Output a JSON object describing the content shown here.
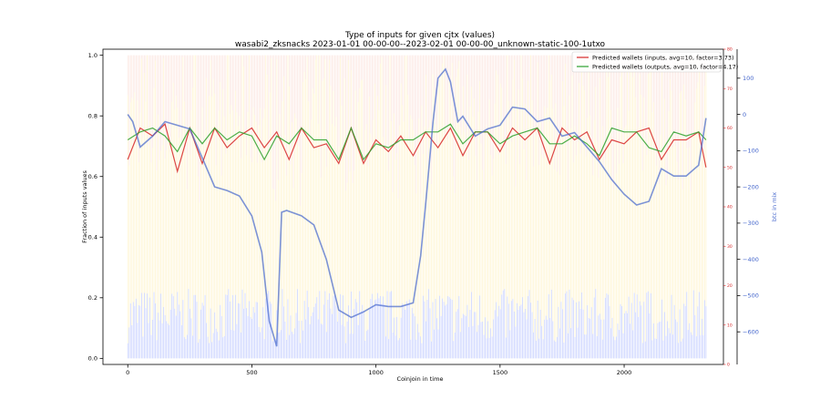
{
  "chart_data": {
    "type": "line",
    "title": "Type of inputs for given cjtx (values)",
    "subtitle": "wasabi2_zksnacks 2023-01-01 00-00-00--2023-02-01 00-00-00_unknown-static-100-1utxo",
    "xlabel": "Coinjoin in time",
    "ylabel": "Fraction of inputs values",
    "y2label": "btc in mix",
    "xlim": [
      -100,
      2400
    ],
    "ylim": [
      -0.02,
      1.02
    ],
    "y_red_lim": [
      0,
      80
    ],
    "y2lim": [
      -690,
      180
    ],
    "x_ticks": [
      0,
      500,
      1000,
      1500,
      2000
    ],
    "x_tick_labels": [
      "0",
      "500",
      "1000",
      "1500",
      "2000"
    ],
    "y_ticks": [
      0.0,
      0.2,
      0.4,
      0.6,
      0.8,
      1.0
    ],
    "y_tick_labels": [
      "0.0",
      "0.2",
      "0.4",
      "0.6",
      "0.8",
      "1.0"
    ],
    "y_red_ticks": [
      0,
      10,
      20,
      30,
      40,
      50,
      60,
      70,
      80
    ],
    "y_red_tick_labels": [
      "0",
      "10",
      "20",
      "30",
      "40",
      "50",
      "60",
      "70",
      "80"
    ],
    "y2_ticks": [
      100,
      0,
      -100,
      -200,
      -300,
      -400,
      -500,
      -600
    ],
    "y2_tick_labels": [
      "100",
      "0",
      "−100",
      "−200",
      "−300",
      "−400",
      "−500",
      "−600"
    ],
    "legend_position": "top-right",
    "grid": false,
    "series": [
      {
        "name": "Predicted wallets (inputs, avg=10, factor=3.73)",
        "color": "#d62728",
        "axis": "red",
        "x": [
          0,
          50,
          100,
          150,
          200,
          250,
          300,
          350,
          400,
          450,
          500,
          550,
          600,
          650,
          700,
          750,
          800,
          850,
          900,
          950,
          1000,
          1050,
          1100,
          1150,
          1200,
          1250,
          1300,
          1350,
          1400,
          1450,
          1500,
          1550,
          1600,
          1650,
          1700,
          1750,
          1800,
          1850,
          1900,
          1950,
          2000,
          2050,
          2100,
          2150,
          2200,
          2250,
          2300,
          2330
        ],
        "y": [
          52,
          60,
          58,
          61,
          49,
          60,
          51,
          60,
          55,
          58,
          60,
          55,
          59,
          52,
          60,
          55,
          56,
          51,
          60,
          51,
          57,
          54,
          58,
          53,
          59,
          55,
          60,
          53,
          59,
          59,
          54,
          60,
          57,
          60,
          51,
          60,
          57,
          59,
          52,
          57,
          56,
          59,
          60,
          52,
          57,
          57,
          59,
          50
        ]
      },
      {
        "name": "Predicted wallets (outputs, avg=10, factor=4.17)",
        "color": "#2ca02c",
        "axis": "red",
        "x": [
          0,
          50,
          100,
          150,
          200,
          250,
          300,
          350,
          400,
          450,
          500,
          550,
          600,
          650,
          700,
          750,
          800,
          850,
          900,
          950,
          1000,
          1050,
          1100,
          1150,
          1200,
          1250,
          1300,
          1350,
          1400,
          1450,
          1500,
          1550,
          1600,
          1650,
          1700,
          1750,
          1800,
          1850,
          1900,
          1950,
          2000,
          2050,
          2100,
          2150,
          2200,
          2250,
          2300,
          2330
        ],
        "y": [
          57,
          59,
          60,
          58,
          54,
          60,
          56,
          60,
          57,
          59,
          58,
          52,
          58,
          56,
          60,
          57,
          57,
          52,
          60,
          52,
          56,
          55,
          57,
          57,
          59,
          59,
          61,
          56,
          59,
          59,
          56,
          58,
          59,
          60,
          56,
          56,
          58,
          56,
          53,
          60,
          59,
          59,
          55,
          54,
          59,
          58,
          59,
          57
        ]
      },
      {
        "name": "btc in mix",
        "color": "#4466cc",
        "axis": "blue",
        "x": [
          0,
          20,
          50,
          100,
          150,
          200,
          250,
          300,
          350,
          400,
          450,
          500,
          540,
          570,
          600,
          620,
          640,
          700,
          750,
          800,
          850,
          900,
          950,
          1000,
          1050,
          1100,
          1150,
          1180,
          1200,
          1230,
          1250,
          1280,
          1300,
          1330,
          1350,
          1400,
          1450,
          1500,
          1550,
          1600,
          1650,
          1700,
          1750,
          1800,
          1850,
          1900,
          1950,
          2000,
          2050,
          2100,
          2150,
          2200,
          2250,
          2300,
          2330
        ],
        "y": [
          0,
          -20,
          -90,
          -60,
          -20,
          -30,
          -40,
          -120,
          -200,
          -210,
          -225,
          -280,
          -380,
          -570,
          -640,
          -270,
          -265,
          -280,
          -305,
          -400,
          -540,
          -560,
          -545,
          -525,
          -530,
          -530,
          -520,
          -390,
          -250,
          -20,
          100,
          125,
          90,
          -20,
          -5,
          -60,
          -40,
          -30,
          20,
          15,
          -20,
          -10,
          -60,
          -50,
          -90,
          -130,
          -180,
          -220,
          -250,
          -240,
          -150,
          -170,
          -170,
          -140,
          -10
        ]
      }
    ]
  }
}
